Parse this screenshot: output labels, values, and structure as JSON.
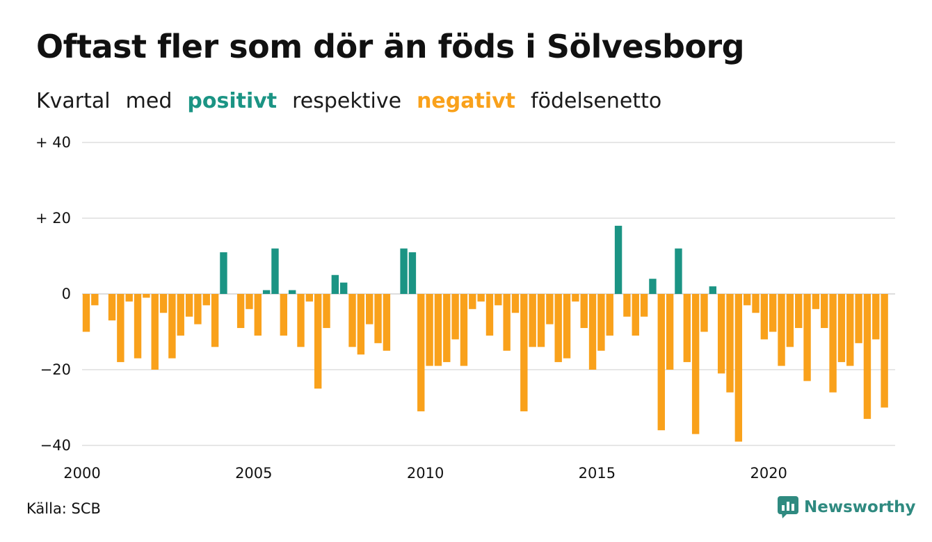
{
  "header": {
    "title": "Oftast fler som dör än föds i Sölvesborg",
    "subtitle": {
      "part1": "Kvartal",
      "part2": "med",
      "positive": "positivt",
      "part3": "respektive",
      "negative": "negativt",
      "part4": "födelsenetto"
    }
  },
  "footer": {
    "source": "Källa: SCB",
    "brand": "Newsworthy",
    "brand_icon": "newsworthy-logo-icon"
  },
  "colors": {
    "positive": "#1b9484",
    "negative": "#f9a11b",
    "grid": "#dddddd",
    "brand": "#2f8a80"
  },
  "chart_data": {
    "type": "bar",
    "title": "Oftast fler som dör än föds i Sölvesborg",
    "subtitle": "Kvartal med positivt respektive negativt födelsenetto",
    "xlabel": "",
    "ylabel": "",
    "ylim": [
      -40,
      40
    ],
    "grid": true,
    "yticks": [
      {
        "value": 40,
        "label": "+ 40"
      },
      {
        "value": 20,
        "label": "+ 20"
      },
      {
        "value": 0,
        "label": "0"
      },
      {
        "value": -20,
        "label": "−20"
      },
      {
        "value": -40,
        "label": "−40"
      }
    ],
    "xticks": [
      "2000",
      "2005",
      "2010",
      "2015",
      "2020"
    ],
    "start_year": 2000,
    "periods_per_year": 4,
    "values": [
      -10,
      -3,
      0,
      -7,
      -18,
      -2,
      -17,
      -1,
      -20,
      -5,
      -17,
      -11,
      -6,
      -8,
      -3,
      -14,
      11,
      0,
      -9,
      -4,
      -11,
      1,
      12,
      -11,
      1,
      -14,
      -2,
      -25,
      -9,
      5,
      3,
      -14,
      -16,
      -8,
      -13,
      -15,
      0,
      12,
      11,
      -31,
      -19,
      -19,
      -18,
      -12,
      -19,
      -4,
      -2,
      -11,
      -3,
      -15,
      -5,
      -31,
      -14,
      -14,
      -8,
      -18,
      -17,
      -2,
      -9,
      -20,
      -15,
      -11,
      18,
      -6,
      -11,
      -6,
      4,
      -36,
      -20,
      12,
      -18,
      -37,
      -10,
      2,
      -21,
      -26,
      -39,
      -3,
      -5,
      -12,
      -10,
      -19,
      -14,
      -9,
      -23,
      -4,
      -9,
      -26,
      -18,
      -19,
      -13,
      -33,
      -12,
      -30
    ]
  }
}
